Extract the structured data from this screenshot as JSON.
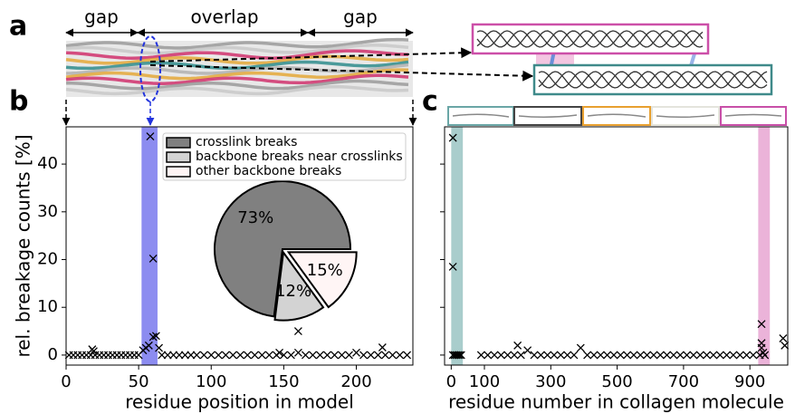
{
  "figure": {
    "panel_labels": [
      "a",
      "b",
      "c"
    ],
    "region_labels": [
      "gap",
      "overlap",
      "gap"
    ]
  },
  "chart_data": [
    {
      "type": "scatter",
      "xlabel": "residue position in model",
      "ylabel": "rel. breakage counts [%]",
      "xlim": [
        0,
        239
      ],
      "ylim": [
        -2.1,
        47.8
      ],
      "xticks": [
        0,
        50,
        100,
        150,
        200
      ],
      "yticks": [
        0,
        10,
        20,
        30,
        40
      ],
      "ytick_labels": true,
      "highlight": {
        "xlim": [
          52,
          63
        ],
        "color": "#8c8cf0"
      },
      "series": [
        {
          "color": "#000000",
          "x": [
            2,
            5,
            8,
            11,
            14,
            17,
            20,
            23,
            26,
            29,
            32,
            35,
            38,
            41,
            44,
            47,
            50,
            66,
            70,
            74,
            78,
            82,
            86,
            90,
            95,
            100,
            105,
            110,
            115,
            120,
            125,
            130,
            135,
            140,
            145,
            150,
            155,
            165,
            170,
            175,
            180,
            185,
            190,
            195,
            205,
            210,
            215,
            220,
            225,
            230,
            235,
            58,
            60,
            62,
            60,
            57,
            55,
            53,
            64,
            18,
            19,
            160,
            160,
            218,
            147,
            200
          ],
          "values": [
            0,
            0,
            0,
            0,
            0,
            0,
            0,
            0,
            0,
            0,
            0,
            0,
            0,
            0,
            0,
            0,
            0,
            0,
            0,
            0,
            0,
            0,
            0,
            0,
            0,
            0,
            0,
            0,
            0,
            0,
            0,
            0,
            0,
            0,
            0,
            0,
            0,
            0,
            0,
            0,
            0,
            0,
            0,
            0,
            0,
            0,
            0,
            0,
            0,
            0,
            0,
            45.8,
            20.2,
            4,
            3.8,
            2,
            1.5,
            1,
            1.5,
            1.2,
            0.8,
            5,
            0.5,
            1.6,
            0.5,
            0.5
          ]
        }
      ]
    },
    {
      "type": "pie",
      "categories": [
        "crosslink breaks",
        "backbone breaks near crosslinks",
        "other backbone breaks"
      ],
      "values": [
        73,
        12,
        15
      ],
      "value_labels": [
        "73%",
        "12%",
        "15%"
      ],
      "colors": [
        "#808080",
        "#d3d3d3",
        "#fff5f5"
      ],
      "explode": [
        0,
        0.05,
        0.1
      ],
      "start_angle": 0
    },
    {
      "type": "scatter",
      "xlabel": "residue number in collagen molecule",
      "xlim": [
        -20,
        1014
      ],
      "ylim": [
        -2.1,
        47.8
      ],
      "xticks": [
        0,
        100,
        300,
        500,
        700,
        900
      ],
      "yticks": [
        0,
        10,
        20,
        30,
        40
      ],
      "ytick_labels": false,
      "bands": [
        {
          "xlim": [
            0,
            35
          ],
          "color": "#a9cdcc"
        },
        {
          "xlim": [
            925,
            960
          ],
          "color": "#ebb3d9"
        }
      ],
      "series": [
        {
          "color": "#000000",
          "x": [
            5,
            10,
            15,
            20,
            25,
            30,
            90,
            110,
            130,
            150,
            170,
            190,
            210,
            250,
            270,
            290,
            310,
            330,
            350,
            370,
            410,
            430,
            450,
            470,
            490,
            510,
            530,
            550,
            570,
            590,
            610,
            630,
            650,
            670,
            690,
            710,
            730,
            750,
            770,
            790,
            810,
            830,
            850,
            870,
            890,
            910,
            930,
            945,
            5,
            5,
            200,
            230,
            390,
            935,
            935,
            935,
            940,
            1000,
            1005
          ],
          "values": [
            0,
            0,
            0,
            0,
            0,
            0,
            0,
            0,
            0,
            0,
            0,
            0,
            0,
            0,
            0,
            0,
            0,
            0,
            0,
            0,
            0,
            0,
            0,
            0,
            0,
            0,
            0,
            0,
            0,
            0,
            0,
            0,
            0,
            0,
            0,
            0,
            0,
            0,
            0,
            0,
            0,
            0,
            0,
            0,
            0,
            0,
            0,
            0,
            45.5,
            18.5,
            2,
            1,
            1.5,
            6.5,
            2.5,
            1.5,
            0.5,
            3.5,
            2
          ]
        }
      ]
    }
  ]
}
